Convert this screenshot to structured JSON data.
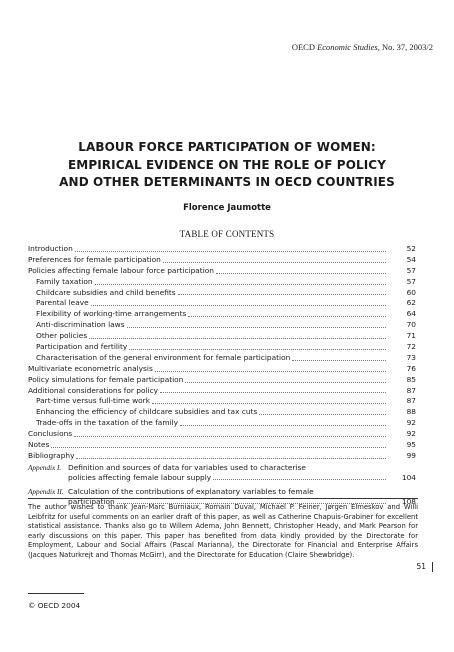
{
  "running_head": {
    "prefix": "OECD ",
    "journal": "Economic Studies",
    "suffix": ", No. 37, 2003/2"
  },
  "title_lines": [
    "LABOUR FORCE PARTICIPATION OF WOMEN:",
    "EMPIRICAL EVIDENCE ON THE ROLE OF POLICY",
    "AND OTHER DETERMINANTS IN OECD COUNTRIES"
  ],
  "author": "Florence Jaumotte",
  "toc_heading": "TABLE OF CONTENTS",
  "toc": [
    {
      "label": "Introduction",
      "page": "52",
      "level": 1
    },
    {
      "label": "Preferences for female participation",
      "page": "54",
      "level": 1
    },
    {
      "label": "Policies affecting female labour force participation",
      "page": "57",
      "level": 1
    },
    {
      "label": "Family taxation",
      "page": "57",
      "level": 2
    },
    {
      "label": "Childcare subsidies and child benefits",
      "page": "60",
      "level": 2
    },
    {
      "label": "Parental leave",
      "page": "62",
      "level": 2
    },
    {
      "label": "Flexibility of working-time arrangements",
      "page": "64",
      "level": 2
    },
    {
      "label": "Anti-discrimination laws",
      "page": "70",
      "level": 2
    },
    {
      "label": "Other policies",
      "page": "71",
      "level": 2
    },
    {
      "label": "Participation and fertility",
      "page": "72",
      "level": 2
    },
    {
      "label": "Characterisation of the general environment for female participation",
      "page": "73",
      "level": 2
    },
    {
      "label": "Multivariate econometric analysis",
      "page": "76",
      "level": 1
    },
    {
      "label": "Policy simulations for female participation",
      "page": "85",
      "level": 1
    },
    {
      "label": "Additional considerations for policy",
      "page": "87",
      "level": 1
    },
    {
      "label": "Part-time versus full-time work",
      "page": "87",
      "level": 2
    },
    {
      "label": "Enhancing the efficiency of childcare subsidies and tax cuts",
      "page": "88",
      "level": 2
    },
    {
      "label": "Trade-offs in the taxation of the family",
      "page": "92",
      "level": 2
    },
    {
      "label": "Conclusions",
      "page": "92",
      "level": 1
    },
    {
      "label": "Notes",
      "page": "95",
      "level": 1
    },
    {
      "label": "Bibliography",
      "page": "99",
      "level": 1
    }
  ],
  "appendices": [
    {
      "tag": "Appendix I.",
      "line1": "Definition and sources of data for variables used to characterise",
      "line2": "policies affecting female labour supply",
      "page": "104"
    },
    {
      "tag": "Appendix II.",
      "line1": "Calculation of the contributions of explanatory variables to female",
      "line2": "participation",
      "page": "108"
    }
  ],
  "acknowledgement": "The author wishes to thank Jean-Marc Burniaux, Romain Duval, Michael P. Feiner, Jørgen Elmeskov and Willi Leibfritz for useful comments on an earlier draft of this paper, as well as Catherine Chapuis-Grabiner for excellent statistical assistance. Thanks also go to Willem Adema, John Bennett, Christopher Heady, and Mark Pearson for early discussions on this paper. This paper has benefited from data kindly provided by the Directorate for Employment, Labour and Social Affairs (Pascal Marianna), the Directorate for Financial and Enterprise Affairs (Jacques Naturkrejt and Thomas McGirr), and the Directorate for Education (Claire Shewbridge).",
  "page_number": "51",
  "copyright": "© OECD 2004"
}
